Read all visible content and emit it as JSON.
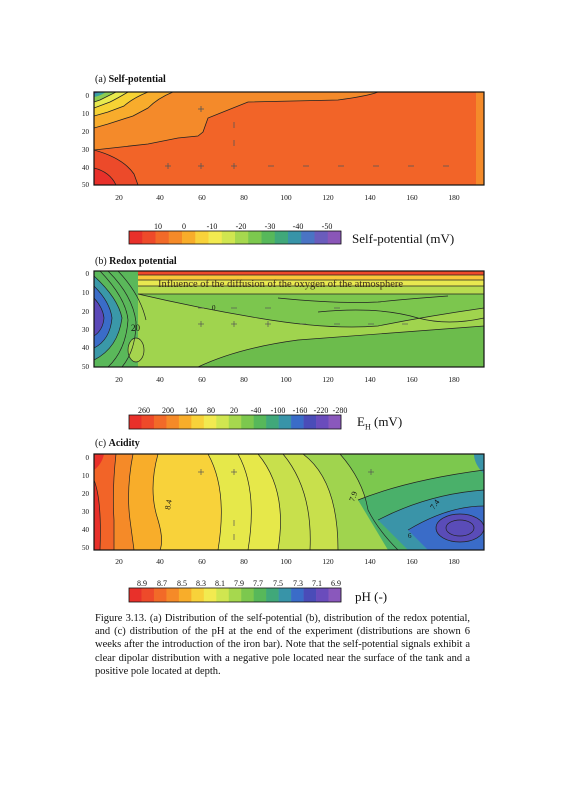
{
  "panels": [
    {
      "id": "a",
      "label_prefix": "(a)",
      "label_title": "Self-potential",
      "y_ticks": [
        "0",
        "10",
        "20",
        "30",
        "40",
        "50"
      ],
      "x_ticks": [
        "20",
        "40",
        "60",
        "80",
        "100",
        "120",
        "140",
        "160",
        "180"
      ],
      "annotations": [],
      "colorbar": {
        "title": "Self-potential (mV)",
        "tick_labels": [
          "10",
          "0",
          "-10",
          "-20",
          "-30",
          "-40",
          "-50"
        ],
        "colors": [
          "#e8302a",
          "#ee4a2a",
          "#f26a28",
          "#f58a28",
          "#f8ad2a",
          "#f8d23a",
          "#f2ea50",
          "#d0e650",
          "#a6d84e",
          "#7cc84e",
          "#57b85a",
          "#40a87a",
          "#3894a8",
          "#4a74c4",
          "#6a5cbc",
          "#8a56b8"
        ]
      }
    },
    {
      "id": "b",
      "label_prefix": "(b)",
      "label_title": "Redox potential",
      "y_ticks": [
        "0",
        "10",
        "20",
        "30",
        "40",
        "50"
      ],
      "x_ticks": [
        "20",
        "40",
        "60",
        "80",
        "100",
        "120",
        "140",
        "160",
        "180"
      ],
      "annotations": [
        "Influence of the diffusion of the oxygen of the atmosphere",
        "0",
        "20"
      ],
      "colorbar": {
        "title_main": "E",
        "title_sub": "H",
        "title_unit": " (mV)",
        "tick_labels": [
          "260",
          "200",
          "140",
          "80",
          "20",
          "-40",
          "-100",
          "-160",
          "-220",
          "-280"
        ],
        "colors": [
          "#e8302a",
          "#ee4a2a",
          "#f26a28",
          "#f58a28",
          "#f8ad2a",
          "#f8d23a",
          "#f2ea50",
          "#d0e650",
          "#a6d84e",
          "#7cc84e",
          "#57b85a",
          "#40a87a",
          "#3894a8",
          "#3a6cc8",
          "#4a4cb8",
          "#6a4cbc",
          "#8a58bc"
        ]
      }
    },
    {
      "id": "c",
      "label_prefix": "(c)",
      "label_title": "Acidity",
      "y_ticks": [
        "0",
        "10",
        "20",
        "30",
        "40",
        "50"
      ],
      "x_ticks": [
        "20",
        "40",
        "60",
        "80",
        "100",
        "120",
        "140",
        "160",
        "180"
      ],
      "annotations": [
        "8.4",
        "7.9",
        "7.4",
        "6"
      ],
      "colorbar": {
        "title": "pH (-)",
        "tick_labels": [
          "8.9",
          "8.7",
          "8.5",
          "8.3",
          "8.1",
          "7.9",
          "7.7",
          "7.5",
          "7.3",
          "7.1",
          "6.9"
        ],
        "colors": [
          "#e8302a",
          "#ee4a2a",
          "#f26a28",
          "#f58a28",
          "#f8ad2a",
          "#f8d23a",
          "#f2ea50",
          "#d0e650",
          "#a6d84e",
          "#7cc84e",
          "#57b85a",
          "#40a87a",
          "#3894a8",
          "#3a6cc8",
          "#4a4cb8",
          "#6a4cbc",
          "#8a58bc"
        ]
      }
    }
  ],
  "caption": "Figure 3.13. (a) Distribution of the self-potential (b), distribution of the redox potential, and (c) distribution of the pH at the end of the experiment (distributions are shown 6 weeks after the introduction of the iron bar). Note that the self-potential signals exhibit a clear dipolar distribution with a negative pole located near the surface of the tank and a positive pole located at depth."
}
